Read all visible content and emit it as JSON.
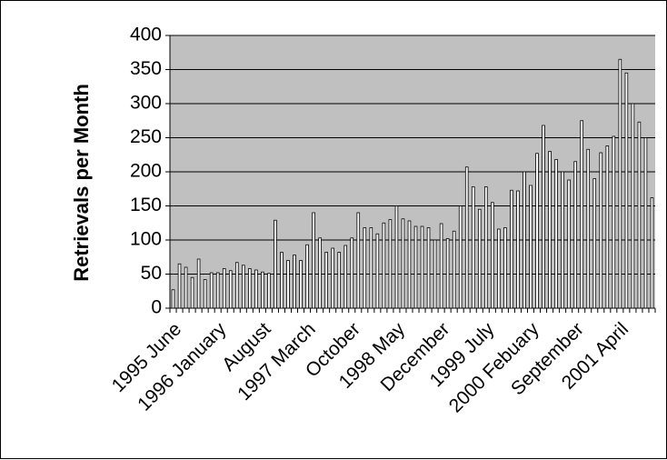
{
  "chart_data": {
    "type": "bar",
    "title": "",
    "xlabel": "",
    "ylabel": "Retrievals per Month",
    "ylim": [
      0,
      400
    ],
    "yticks": [
      0,
      50,
      100,
      150,
      200,
      250,
      300,
      350,
      400
    ],
    "grid": true,
    "plot_background": "#c0c0c0",
    "bar_color": "#ffffff",
    "bar_edge_color": "#000000",
    "category_labels": [
      {
        "index": 0,
        "label": "1995 June"
      },
      {
        "index": 7,
        "label": "1996 January"
      },
      {
        "index": 14,
        "label": "August"
      },
      {
        "index": 21,
        "label": "1997 March"
      },
      {
        "index": 28,
        "label": "October"
      },
      {
        "index": 35,
        "label": "1998 May"
      },
      {
        "index": 42,
        "label": "December"
      },
      {
        "index": 49,
        "label": "1999 July"
      },
      {
        "index": 56,
        "label": "2000 Febuary"
      },
      {
        "index": 63,
        "label": "September"
      },
      {
        "index": 70,
        "label": "2001 April"
      }
    ],
    "values": [
      27,
      65,
      60,
      45,
      72,
      42,
      52,
      52,
      58,
      55,
      67,
      63,
      58,
      56,
      53,
      51,
      129,
      82,
      70,
      78,
      70,
      93,
      140,
      103,
      82,
      88,
      82,
      92,
      103,
      140,
      118,
      118,
      109,
      125,
      130,
      150,
      131,
      128,
      120,
      120,
      118,
      100,
      124,
      102,
      113,
      150,
      207,
      178,
      145,
      178,
      155,
      116,
      118,
      173,
      172,
      200,
      180,
      227,
      268,
      230,
      218,
      200,
      188,
      215,
      275,
      233,
      190,
      228,
      238,
      252,
      365,
      345,
      300,
      273,
      250,
      162
    ]
  }
}
